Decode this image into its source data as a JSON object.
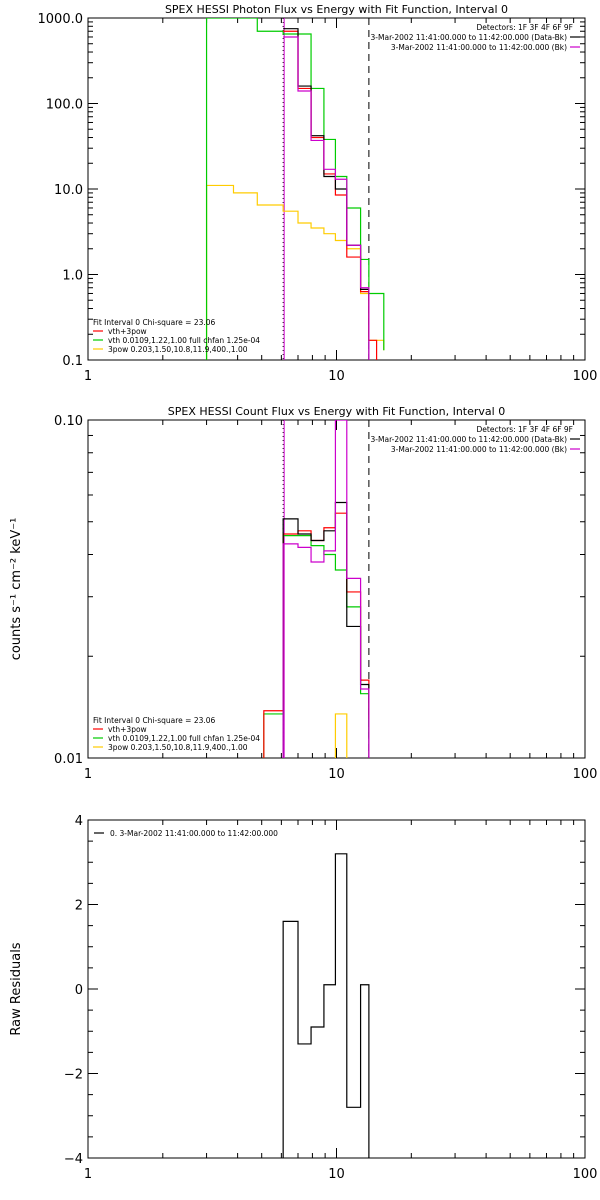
{
  "chart_data": [
    {
      "type": "line",
      "title": "SPEX HESSI Photon Flux vs Energy with Fit Function, Interval 0",
      "xlabel": "",
      "ylabel": "",
      "xscale": "log",
      "yscale": "log",
      "xlim": [
        1,
        100
      ],
      "ylim": [
        0.1,
        1000
      ],
      "xticks": [
        {
          "value": 1,
          "label": "1"
        },
        {
          "value": 10,
          "label": "10"
        },
        {
          "value": 100,
          "label": "100"
        }
      ],
      "yticks": [
        {
          "value": 0.1,
          "label": "0.1"
        },
        {
          "value": 1,
          "label": "1.0"
        },
        {
          "value": 10,
          "label": "10.0"
        },
        {
          "value": 100,
          "label": "100.0"
        },
        {
          "value": 1000,
          "label": "1000.0"
        }
      ],
      "info_text": [
        "Detectors: 1F 3F 4F 6F 9F"
      ],
      "legend_top": [
        {
          "label": "3-Mar-2002 11:41:00.000 to 11:42:00.000 (Data-Bk)",
          "color": "#000000"
        },
        {
          "label": "3-Mar-2002 11:41:00.000 to 11:42:00.000 (Bk)",
          "color": "#cc00cc"
        }
      ],
      "fit_text": "Fit Interval 0   Chi-square = 23.06",
      "legend_bottom": [
        {
          "label": "vth+3pow",
          "color": "#ff0000"
        },
        {
          "label": "vth 0.0109,1.22,1.00  full chfan 1.25e-04",
          "color": "#00cc00"
        },
        {
          "label": "3pow 0.203,1.50,10.8,11.9,400.,1.00",
          "color": "#ffcc00"
        }
      ],
      "vlines": [
        {
          "x": 6.1,
          "style": "dotted",
          "color": "#000000"
        },
        {
          "x": 6.1,
          "style": "solid",
          "color": "#cc00cc"
        },
        {
          "x": 13.5,
          "style": "dashed",
          "color": "#000000"
        }
      ],
      "series": [
        {
          "color": "#ffcc00",
          "edges": [
            3.0,
            3.85,
            4.8,
            6.1,
            7.0,
            7.9,
            8.9,
            9.9,
            11.0,
            12.5,
            13.5,
            15.5
          ],
          "values": [
            11,
            9,
            6.5,
            5.5,
            4,
            3.5,
            3,
            2.5,
            2,
            0.6,
            0.17,
            0.13
          ],
          "open_start": true
        },
        {
          "color": "#00cc00",
          "edges": [
            3.0,
            4.8,
            6.1,
            7.0,
            7.9,
            8.9,
            9.9,
            11.0,
            12.5,
            13.5,
            15.5
          ],
          "values": [
            1000,
            700,
            650,
            650,
            150,
            38,
            14,
            6,
            1.5,
            0.6,
            0.13
          ],
          "open_start": true,
          "open_end": true
        },
        {
          "color": "#ff0000",
          "edges": [
            6.1,
            7.0,
            7.9,
            8.9,
            9.9,
            11.0,
            12.5,
            13.5,
            14.5
          ],
          "values": [
            700,
            150,
            40,
            15,
            8.5,
            1.6,
            0.63,
            0.17
          ]
        },
        {
          "color": "#000000",
          "edges": [
            6.1,
            7.0,
            7.9,
            8.9,
            9.9,
            11.0,
            12.5,
            13.5
          ],
          "values": [
            750,
            160,
            42,
            14,
            10,
            2.2,
            0.67
          ]
        },
        {
          "color": "#cc00cc",
          "edges": [
            6.1,
            7.0,
            7.9,
            8.9,
            9.9,
            11.0,
            12.5,
            13.5
          ],
          "values": [
            600,
            140,
            37,
            17,
            13,
            2.2,
            0.7
          ]
        }
      ]
    },
    {
      "type": "line",
      "title": "SPEX HESSI Count Flux vs Energy with Fit Function, Interval 0",
      "xlabel": "",
      "ylabel": "counts s⁻¹ cm⁻² keV⁻¹",
      "xscale": "log",
      "yscale": "log",
      "xlim": [
        1,
        100
      ],
      "ylim": [
        0.01,
        0.1
      ],
      "xticks": [
        {
          "value": 1,
          "label": "1"
        },
        {
          "value": 10,
          "label": "10"
        },
        {
          "value": 100,
          "label": "100"
        }
      ],
      "yticks": [
        {
          "value": 0.01,
          "label": "0.01"
        },
        {
          "value": 0.1,
          "label": "0.10"
        }
      ],
      "info_text": [
        "Detectors: 1F 3F 4F 6F 9F"
      ],
      "legend_top": [
        {
          "label": "3-Mar-2002 11:41:00.000 to 11:42:00.000 (Data-Bk)",
          "color": "#000000"
        },
        {
          "label": "3-Mar-2002 11:41:00.000 to 11:42:00.000 (Bk)",
          "color": "#cc00cc"
        }
      ],
      "fit_text": "Fit Interval 0   Chi-square = 23.06",
      "legend_bottom": [
        {
          "label": "vth+3pow",
          "color": "#ff0000"
        },
        {
          "label": "vth 0.0109,1.22,1.00  full chfan 1.25e-04",
          "color": "#00cc00"
        },
        {
          "label": "3pow 0.203,1.50,10.8,11.9,400.,1.00",
          "color": "#ffcc00"
        }
      ],
      "vlines": [
        {
          "x": 6.1,
          "style": "dotted",
          "color": "#000000"
        },
        {
          "x": 6.1,
          "style": "solid",
          "color": "#cc00cc"
        },
        {
          "x": 13.5,
          "style": "dashed",
          "color": "#000000"
        }
      ],
      "series": [
        {
          "color": "#ffcc00",
          "edges": [
            9.9,
            11.0
          ],
          "values": [
            0.0135
          ],
          "open_start": true,
          "open_end": true
        },
        {
          "color": "#00cc00",
          "edges": [
            5.1,
            6.1,
            7.0,
            7.9,
            8.9,
            9.9,
            11.0,
            12.5,
            13.5
          ],
          "values": [
            0.0135,
            0.0455,
            0.0455,
            0.0425,
            0.04,
            0.036,
            0.028,
            0.0155,
            0.0115
          ],
          "open_start": true,
          "open_end": true
        },
        {
          "color": "#ff0000",
          "edges": [
            5.1,
            6.1,
            7.0,
            7.9,
            8.9,
            9.9,
            11.0,
            12.5,
            13.5
          ],
          "values": [
            0.0138,
            0.046,
            0.047,
            0.044,
            0.048,
            0.053,
            0.031,
            0.017,
            0.013
          ],
          "open_start": true,
          "open_end": true
        },
        {
          "color": "#000000",
          "edges": [
            6.1,
            7.0,
            7.9,
            8.9,
            9.9,
            11.0,
            12.5,
            13.5
          ],
          "values": [
            0.051,
            0.046,
            0.044,
            0.047,
            0.057,
            0.0245,
            0.0165
          ],
          "open_start": true,
          "open_end": true
        },
        {
          "color": "#cc00cc",
          "edges": [
            6.1,
            7.0,
            7.9,
            8.9,
            9.9,
            11.0,
            12.5,
            13.5
          ],
          "values": [
            0.043,
            0.042,
            0.038,
            0.041,
            0.1,
            0.034,
            0.016
          ],
          "open_start": true,
          "open_end": true
        }
      ]
    },
    {
      "type": "line",
      "title": "",
      "xlabel": "",
      "ylabel": "Raw Residuals",
      "xscale": "log",
      "yscale": "linear",
      "xlim": [
        1,
        100
      ],
      "ylim": [
        -4,
        4
      ],
      "xticks": [
        {
          "value": 1,
          "label": "1"
        },
        {
          "value": 10,
          "label": "10"
        },
        {
          "value": 100,
          "label": "100"
        }
      ],
      "yticks": [
        {
          "value": -4,
          "label": "−4"
        },
        {
          "value": -2,
          "label": "−2"
        },
        {
          "value": 0,
          "label": "0"
        },
        {
          "value": 2,
          "label": "2"
        },
        {
          "value": 4,
          "label": "4"
        }
      ],
      "legend_top": [
        {
          "label": "0. 3-Mar-2002 11:41:00.000 to 11:42:00.000",
          "color": "#000000"
        }
      ],
      "vlines": [],
      "series": [
        {
          "color": "#000000",
          "edges": [
            6.1,
            7.0,
            7.9,
            8.9,
            9.9,
            11.0,
            12.5,
            13.5
          ],
          "values": [
            1.6,
            -1.3,
            -0.9,
            0.1,
            3.2,
            -2.8,
            0.1
          ],
          "open_start": true,
          "open_end": true
        }
      ]
    }
  ]
}
